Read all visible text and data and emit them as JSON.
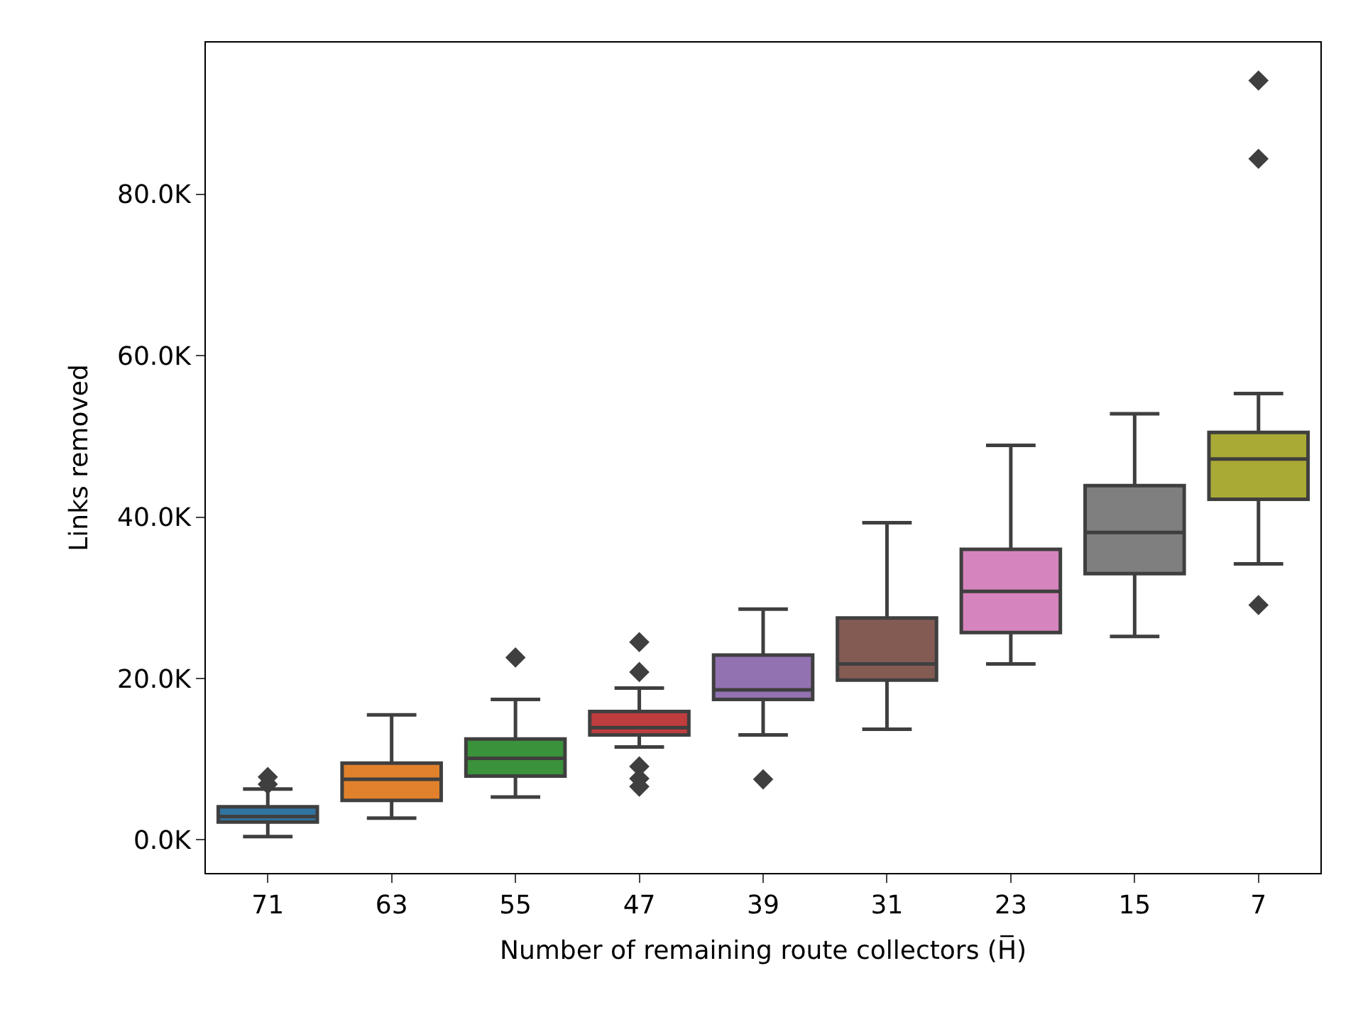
{
  "chart_data": {
    "type": "box",
    "xlabel": "Number of remaining route collectors (H̅)",
    "ylabel": "Links removed",
    "categories": [
      "71",
      "63",
      "55",
      "47",
      "39",
      "31",
      "23",
      "15",
      "7"
    ],
    "colors": [
      "#3274a1",
      "#e1812c",
      "#3a923a",
      "#c03d3e",
      "#9372b2",
      "#845b53",
      "#d684bd",
      "#7f7f7f",
      "#a9aa35"
    ],
    "boxes": [
      {
        "low": 400,
        "q1": 2200,
        "median": 2900,
        "q3": 4100,
        "high": 6300,
        "outliers": [
          6900,
          7800
        ]
      },
      {
        "low": 2700,
        "q1": 4900,
        "median": 7500,
        "q3": 9500,
        "high": 15500
      },
      {
        "low": 5300,
        "q1": 7900,
        "median": 10100,
        "q3": 12500,
        "high": 17400,
        "outliers": [
          22600
        ]
      },
      {
        "low": 11500,
        "q1": 13000,
        "median": 13900,
        "q3": 15900,
        "high": 18800,
        "outliers": [
          20800,
          24500,
          9100,
          7600,
          6600
        ]
      },
      {
        "low": 13000,
        "q1": 17400,
        "median": 18600,
        "q3": 22900,
        "high": 28600,
        "outliers": [
          7500
        ]
      },
      {
        "low": 13700,
        "q1": 19800,
        "median": 21800,
        "q3": 27500,
        "high": 39300
      },
      {
        "low": 21800,
        "q1": 25700,
        "median": 30800,
        "q3": 36000,
        "high": 48900
      },
      {
        "low": 25200,
        "q1": 33000,
        "median": 38100,
        "q3": 43900,
        "high": 52800
      },
      {
        "low": 34200,
        "q1": 42200,
        "median": 47200,
        "q3": 50500,
        "high": 55300,
        "outliers": [
          29100,
          84400,
          94100
        ]
      }
    ],
    "ylim": [
      -4100,
      98800
    ],
    "yticks": [
      {
        "value": 0,
        "label": "0.0K"
      },
      {
        "value": 20000,
        "label": "20.0K"
      },
      {
        "value": 40000,
        "label": "40.0K"
      },
      {
        "value": 60000,
        "label": "60.0K"
      },
      {
        "value": 80000,
        "label": "80.0K"
      }
    ],
    "marker": "diamond"
  }
}
